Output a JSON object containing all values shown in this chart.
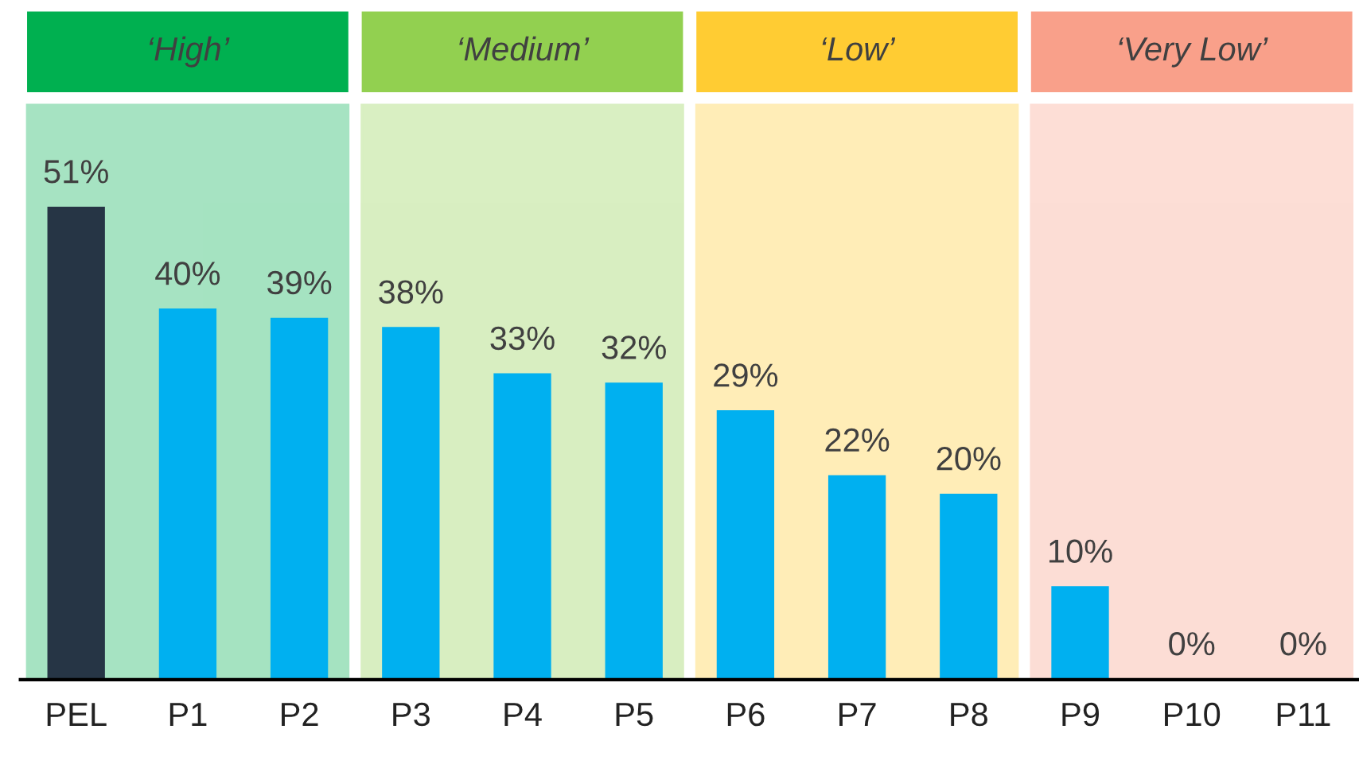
{
  "chart_data": {
    "type": "bar",
    "categories": [
      "PEL",
      "P1",
      "P2",
      "P3",
      "P4",
      "P5",
      "P6",
      "P7",
      "P8",
      "P9",
      "P10",
      "P11"
    ],
    "values": [
      51,
      40,
      39,
      38,
      33,
      32,
      29,
      22,
      20,
      10,
      0,
      0
    ],
    "colors": [
      "#263545",
      "#00b0f0",
      "#00b0f0",
      "#00b0f0",
      "#00b0f0",
      "#00b0f0",
      "#00b0f0",
      "#00b0f0",
      "#00b0f0",
      "#00b0f0",
      "#00b0f0",
      "#00b0f0"
    ],
    "value_labels": [
      "51%",
      "40%",
      "39%",
      "38%",
      "33%",
      "32%",
      "29%",
      "22%",
      "20%",
      "10%",
      "0%",
      "0%"
    ],
    "bands": [
      {
        "axis": "x",
        "from": "PEL",
        "to": "P2",
        "label": "‘High’",
        "color": "#00b050"
      },
      {
        "axis": "x",
        "from": "P3",
        "to": "P5",
        "label": "‘Medium’",
        "color": "#92d050"
      },
      {
        "axis": "x",
        "from": "P6",
        "to": "P8",
        "label": "‘Low’",
        "color": "#ffcc33"
      },
      {
        "axis": "x",
        "from": "P9",
        "to": "P11",
        "label": "‘Very Low’",
        "color": "#f9a08a"
      }
    ],
    "grid": false,
    "legend": false
  }
}
